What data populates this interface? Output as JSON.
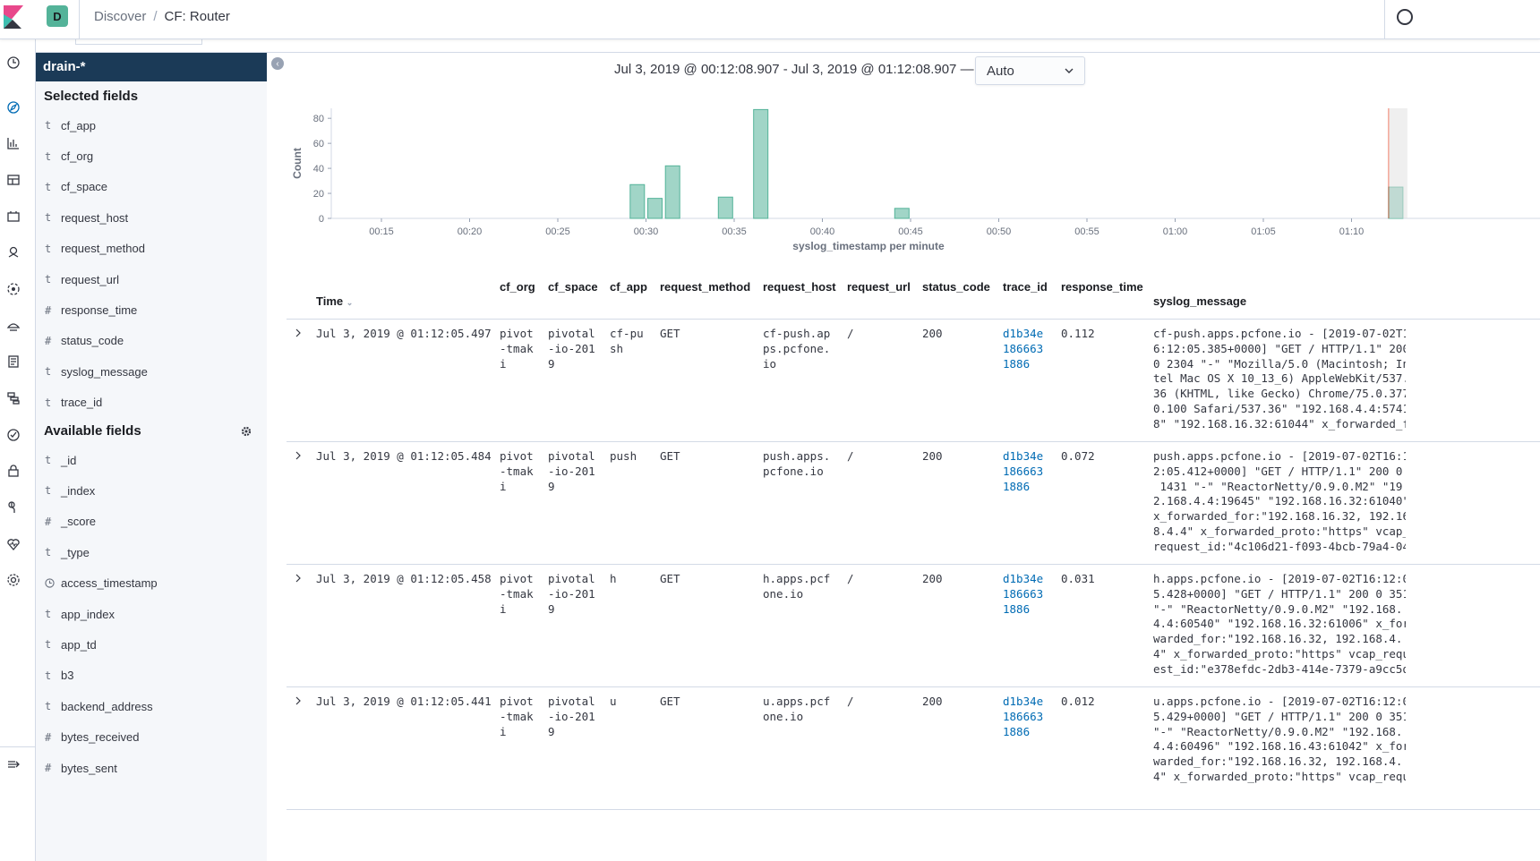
{
  "header": {
    "space_initial": "D",
    "breadcrumbs": [
      "Discover",
      "CF: Router"
    ],
    "separator": "/"
  },
  "sidebar": {
    "index_pattern": "drain-*",
    "selected_title": "Selected fields",
    "selected_fields": [
      {
        "type": "t",
        "name": "cf_app"
      },
      {
        "type": "t",
        "name": "cf_org"
      },
      {
        "type": "t",
        "name": "cf_space"
      },
      {
        "type": "t",
        "name": "request_host"
      },
      {
        "type": "t",
        "name": "request_method"
      },
      {
        "type": "t",
        "name": "request_url"
      },
      {
        "type": "#",
        "name": "response_time"
      },
      {
        "type": "#",
        "name": "status_code"
      },
      {
        "type": "t",
        "name": "syslog_message"
      },
      {
        "type": "t",
        "name": "trace_id"
      }
    ],
    "available_title": "Available fields",
    "available_fields": [
      {
        "type": "t",
        "name": "_id"
      },
      {
        "type": "t",
        "name": "_index"
      },
      {
        "type": "#",
        "name": "_score"
      },
      {
        "type": "t",
        "name": "_type"
      },
      {
        "type": "clock",
        "name": "access_timestamp"
      },
      {
        "type": "t",
        "name": "app_index"
      },
      {
        "type": "t",
        "name": "app_td"
      },
      {
        "type": "t",
        "name": "b3"
      },
      {
        "type": "t",
        "name": "backend_address"
      },
      {
        "type": "#",
        "name": "bytes_received"
      },
      {
        "type": "#",
        "name": "bytes_sent"
      }
    ]
  },
  "time_range": "Jul 3, 2019 @ 00:12:08.907 - Jul 3, 2019 @ 01:12:08.907 —",
  "interval": "Auto",
  "chart_data": {
    "type": "bar",
    "xlabel": "syslog_timestamp per minute",
    "ylabel": "Count",
    "ylim": [
      0,
      88
    ],
    "yticks": [
      0,
      20,
      40,
      60,
      80
    ],
    "xticks": [
      "00:15",
      "00:20",
      "00:25",
      "00:30",
      "00:35",
      "00:40",
      "00:45",
      "00:50",
      "00:55",
      "01:00",
      "01:05",
      "01:10"
    ],
    "xtick_minutes": [
      15,
      20,
      25,
      30,
      35,
      40,
      45,
      50,
      55,
      60,
      65,
      70
    ],
    "x_minutes": [
      29,
      30,
      31,
      34,
      36,
      44,
      72
    ],
    "values": [
      27,
      16,
      42,
      17,
      87,
      8,
      25
    ],
    "bar_color": "#54b399"
  },
  "table": {
    "columns": {
      "time": "Time",
      "cf_org": "cf_org",
      "cf_space": "cf_space",
      "cf_app": "cf_app",
      "request_method": "request_method",
      "request_host": "request_host",
      "request_url": "request_url",
      "status_code": "status_code",
      "trace_id": "trace_id",
      "response_time": "response_time",
      "syslog_message": "syslog_message"
    },
    "rows": [
      {
        "time": "Jul 3, 2019 @ 01:12:05.497",
        "cf_org": "pivot\n-tmak\ni",
        "cf_space": "pivotal\n-io-201\n9",
        "cf_app": "cf-pu\nsh",
        "request_method": "GET",
        "request_host": "cf-push.ap\nps.pcfone.\nio",
        "request_url": "/",
        "status_code": "200",
        "trace_id": "d1b34e\n186663\n1886",
        "response_time": "0.112",
        "syslog_message": "cf-push.apps.pcfone.io - [2019-07-02T1\n6:12:05.385+0000] \"GET / HTTP/1.1\" 200\n0 2304 \"-\" \"Mozilla/5.0 (Macintosh; In\ntel Mac OS X 10_13_6) AppleWebKit/537.\n36 (KHTML, like Gecko) Chrome/75.0.377\n0.100 Safari/537.36\" \"192.168.4.4:5741\n8\" \"192.168.16.32:61044\" x_forwarded_f"
      },
      {
        "time": "Jul 3, 2019 @ 01:12:05.484",
        "cf_org": "pivot\n-tmak\ni",
        "cf_space": "pivotal\n-io-201\n9",
        "cf_app": "push",
        "request_method": "GET",
        "request_host": "push.apps.\npcfone.io",
        "request_url": "/",
        "status_code": "200",
        "trace_id": "d1b34e\n186663\n1886",
        "response_time": "0.072",
        "syslog_message": "push.apps.pcfone.io - [2019-07-02T16:1\n2:05.412+0000] \"GET / HTTP/1.1\" 200 0\n 1431 \"-\" \"ReactorNetty/0.9.0.M2\" \"19\n2.168.4.4:19645\" \"192.168.16.32:61040\"\nx_forwarded_for:\"192.168.16.32, 192.16\n8.4.4\" x_forwarded_proto:\"https\" vcap_\nrequest_id:\"4c106d21-f093-4bcb-79a4-04"
      },
      {
        "time": "Jul 3, 2019 @ 01:12:05.458",
        "cf_org": "pivot\n-tmak\ni",
        "cf_space": "pivotal\n-io-201\n9",
        "cf_app": "h",
        "request_method": "GET",
        "request_host": "h.apps.pcf\none.io",
        "request_url": "/",
        "status_code": "200",
        "trace_id": "d1b34e\n186663\n1886",
        "response_time": "0.031",
        "syslog_message": "h.apps.pcfone.io - [2019-07-02T16:12:0\n5.428+0000] \"GET / HTTP/1.1\" 200 0 351\n\"-\" \"ReactorNetty/0.9.0.M2\" \"192.168.\n4.4:60540\" \"192.168.16.32:61006\" x_for\nwarded_for:\"192.168.16.32, 192.168.4.\n4\" x_forwarded_proto:\"https\" vcap_requ\nest_id:\"e378efdc-2db3-414e-7379-a9cc5d"
      },
      {
        "time": "Jul 3, 2019 @ 01:12:05.441",
        "cf_org": "pivot\n-tmak\ni",
        "cf_space": "pivotal\n-io-201\n9",
        "cf_app": "u",
        "request_method": "GET",
        "request_host": "u.apps.pcf\none.io",
        "request_url": "/",
        "status_code": "200",
        "trace_id": "d1b34e\n186663\n1886",
        "response_time": "0.012",
        "syslog_message": "u.apps.pcfone.io - [2019-07-02T16:12:0\n5.429+0000] \"GET / HTTP/1.1\" 200 0 351\n\"-\" \"ReactorNetty/0.9.0.M2\" \"192.168.\n4.4:60496\" \"192.168.16.43:61042\" x_for\nwarded_for:\"192.168.16.32, 192.168.4.\n4\" x_forwarded_proto:\"https\" vcap_requ"
      }
    ]
  }
}
